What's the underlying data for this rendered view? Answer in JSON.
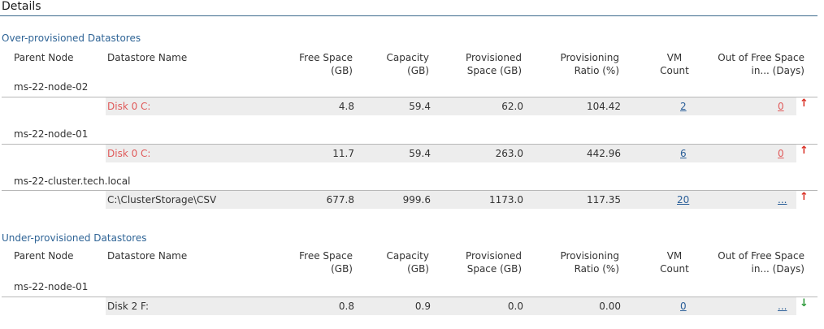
{
  "page_title": "Details",
  "colors": {
    "accent": "#2f6496",
    "rule": "#3b6a8c",
    "warning": "#e05a5a",
    "up_arrow": "#d93025",
    "down_arrow": "#2e9a3a",
    "row_band": "#ededed"
  },
  "headers": {
    "parent_node": "Parent Node",
    "datastore_name": "Datastore Name",
    "free_space_1": "Free Space",
    "free_space_2": "(GB)",
    "capacity_1": "Capacity",
    "capacity_2": "(GB)",
    "provisioned_1": "Provisioned",
    "provisioned_2": "Space (GB)",
    "ratio_1": "Provisioning",
    "ratio_2": "Ratio (%)",
    "vm_1": "VM",
    "vm_2": "Count",
    "oofs_1": "Out of Free Space",
    "oofs_2": "in... (Days)"
  },
  "over": {
    "title": "Over-provisioned Datastores",
    "groups": [
      {
        "node": "ms-22-node-02",
        "name": "Disk 0  C:",
        "free": "4.8",
        "capacity": "59.4",
        "provisioned": "62.0",
        "ratio": "104.42",
        "vm_count": "2",
        "oofs": "0",
        "trend_icon": "arrow-up",
        "trend": "↑"
      },
      {
        "node": "ms-22-node-01",
        "name": "Disk 0  C:",
        "free": "11.7",
        "capacity": "59.4",
        "provisioned": "263.0",
        "ratio": "442.96",
        "vm_count": "6",
        "oofs": "0",
        "trend_icon": "arrow-up",
        "trend": "↑"
      },
      {
        "node": "ms-22-cluster.tech.local",
        "name": "C:\\ClusterStorage\\CSV",
        "free": "677.8",
        "capacity": "999.6",
        "provisioned": "1173.0",
        "ratio": "117.35",
        "vm_count": "20",
        "oofs": "...",
        "trend_icon": "arrow-up",
        "trend": "↑"
      }
    ]
  },
  "under": {
    "title": "Under-provisioned Datastores",
    "groups": [
      {
        "node": "ms-22-node-01",
        "name": "Disk 2  F:",
        "free": "0.8",
        "capacity": "0.9",
        "provisioned": "0.0",
        "ratio": "0.00",
        "vm_count": "0",
        "oofs": "...",
        "trend_icon": "arrow-down",
        "trend": "↓"
      }
    ]
  }
}
